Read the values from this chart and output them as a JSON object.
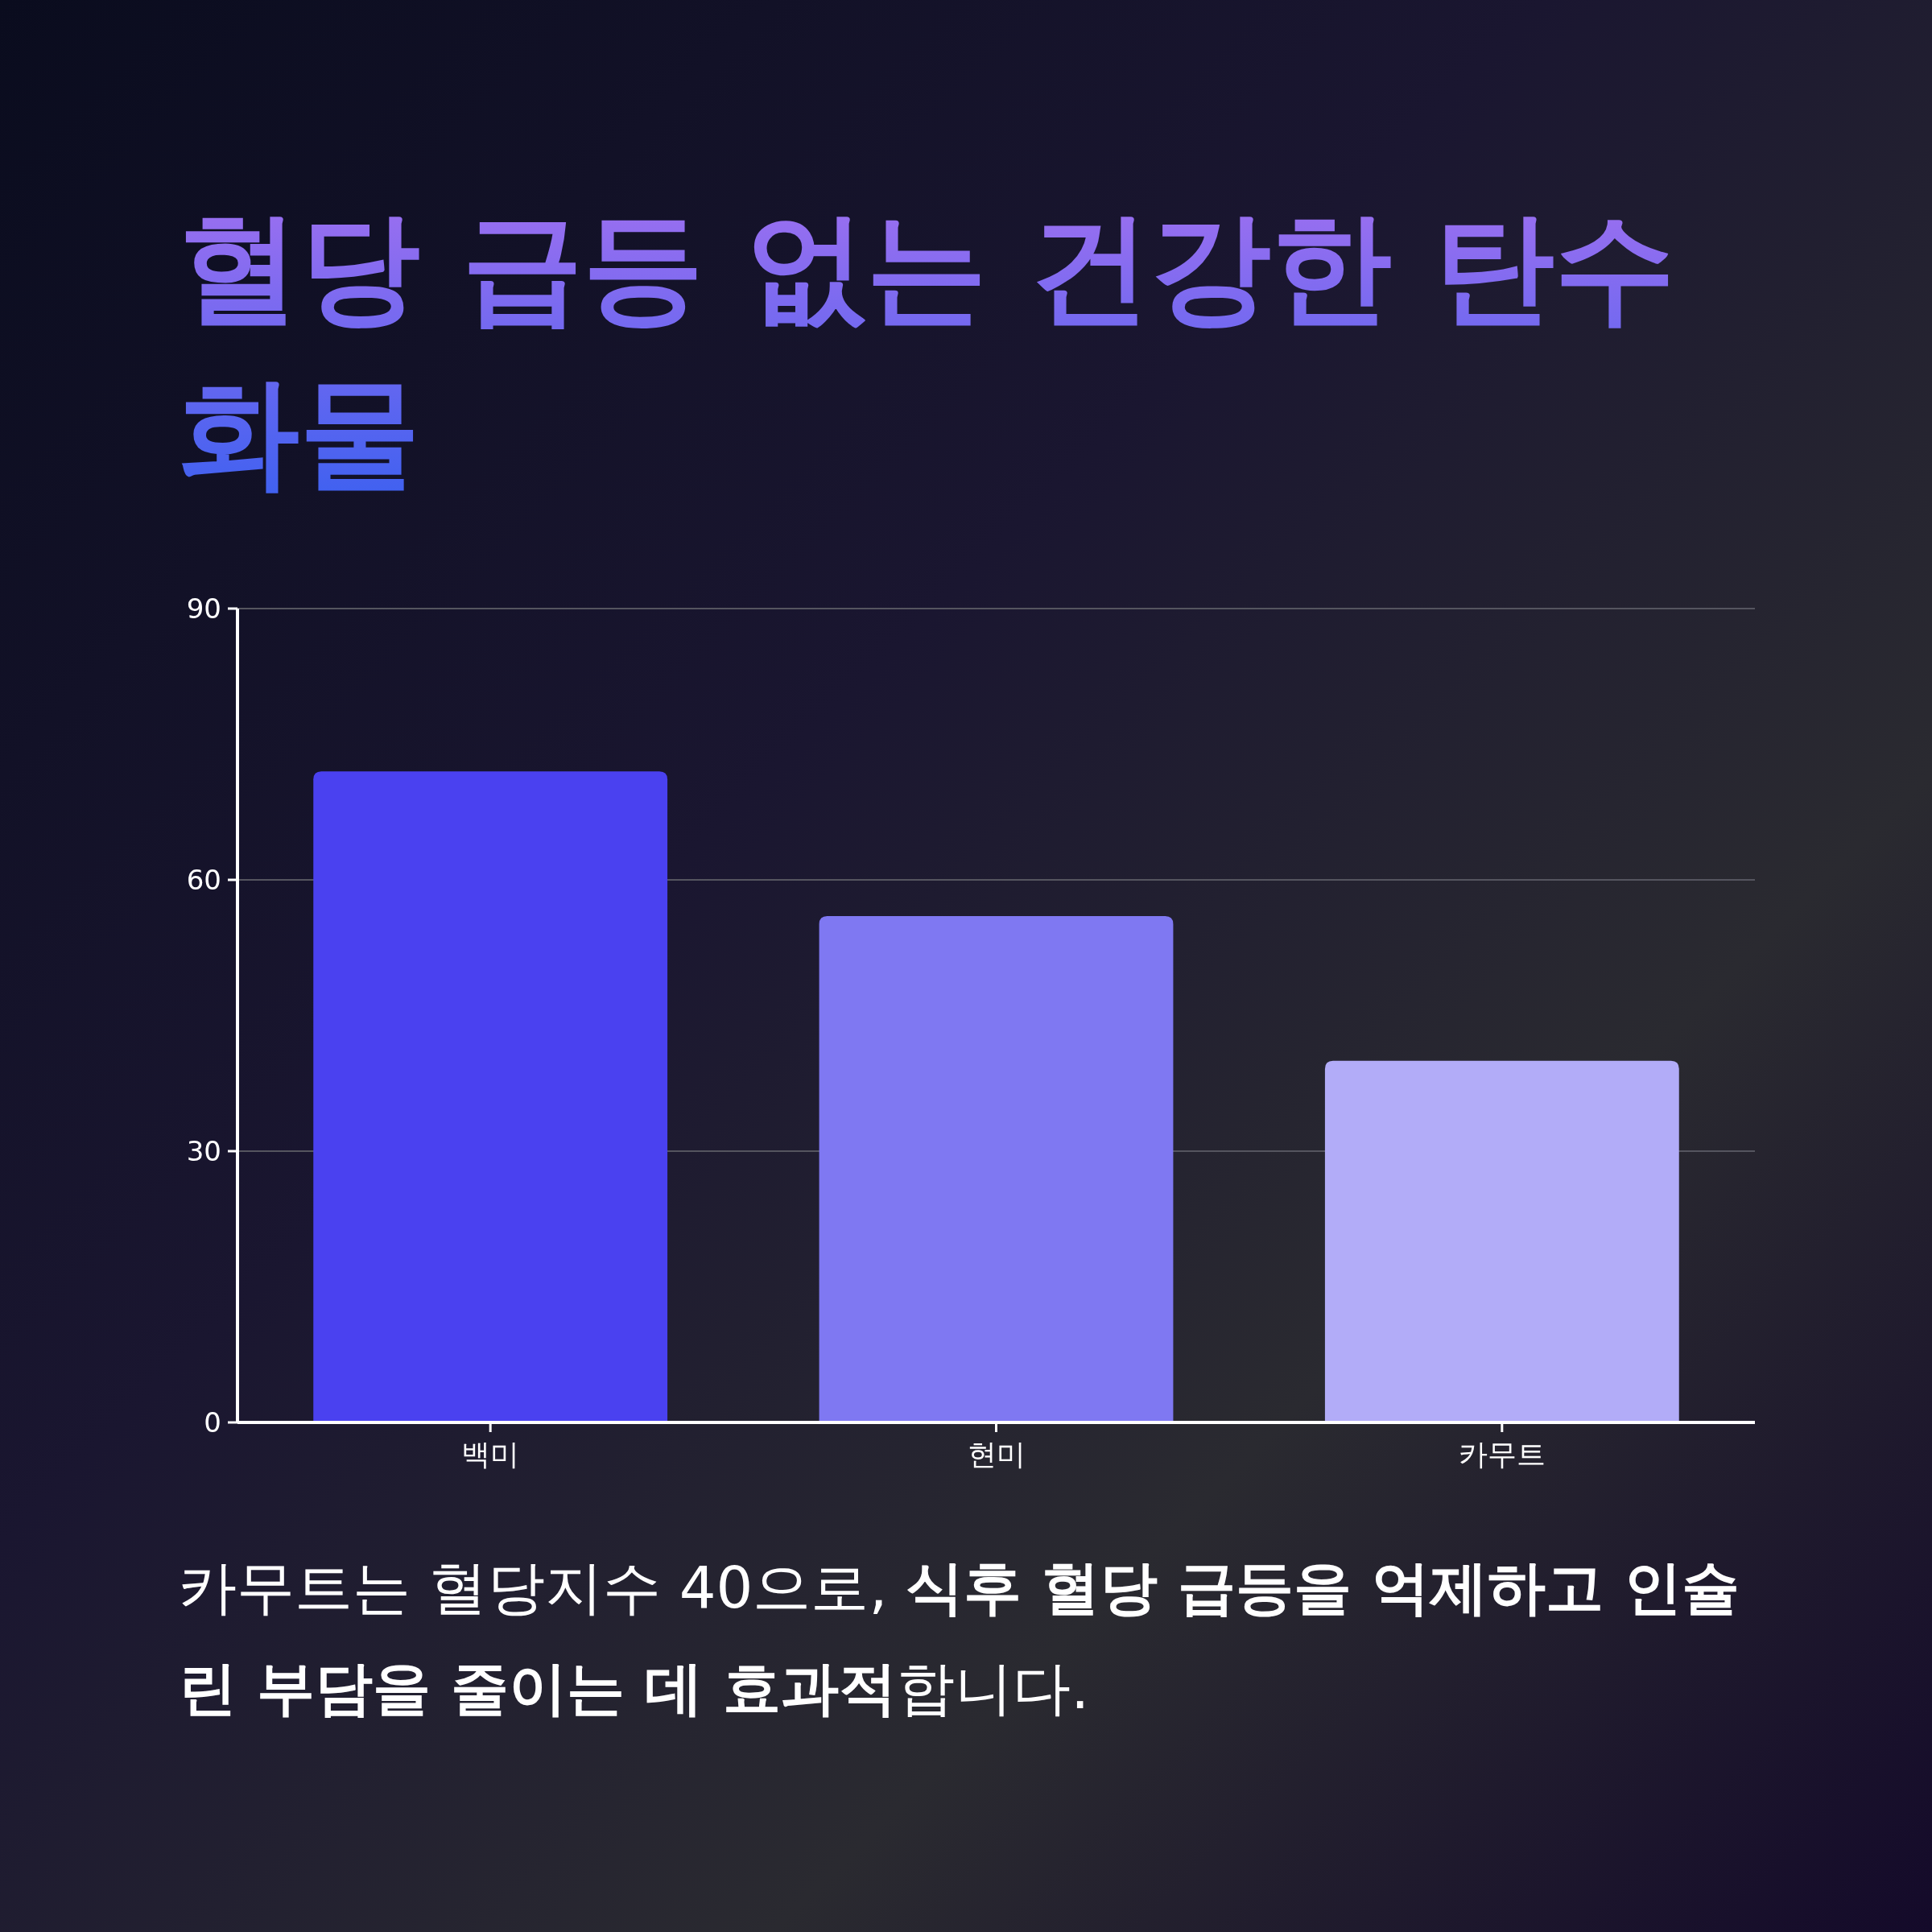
{
  "chart_data": {
    "type": "bar",
    "title": "혈당 급등 없는 건강한 탄수화물",
    "categories": [
      "백미",
      "현미",
      "카무트"
    ],
    "values": [
      72,
      56,
      40
    ],
    "colors": [
      "#4a41f0",
      "#7f78f2",
      "#b2acf8"
    ],
    "ylim": [
      0,
      90
    ],
    "yticks": [
      0,
      30,
      60,
      90
    ],
    "grid": "y",
    "annotations": [
      "카무트는 혈당지수 40으로, ",
      "식후 혈당 급등을 억제하고 인슐린 부담을 줄이는 데 효과적",
      "합니다."
    ]
  }
}
